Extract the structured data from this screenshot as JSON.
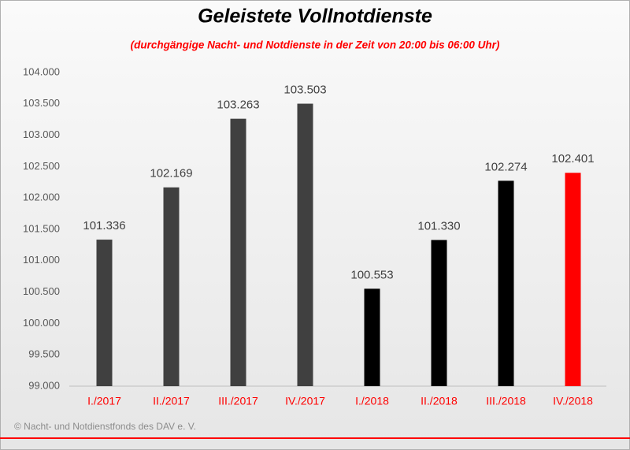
{
  "chart_data": {
    "type": "bar",
    "title": "Geleistete Vollnotdienste",
    "subtitle": "(durchgängige Nacht- und Notdienste in der Zeit von 20:00 bis 06:00 Uhr)",
    "categories": [
      "I./2017",
      "II./2017",
      "III./2017",
      "IV./2017",
      "I./2018",
      "II./2018",
      "III./2018",
      "IV./2018"
    ],
    "values": [
      101336,
      102169,
      103263,
      103503,
      100553,
      101330,
      102274,
      102401
    ],
    "value_labels": [
      "101.336",
      "102.169",
      "103.263",
      "103.503",
      "100.553",
      "101.330",
      "102.274",
      "102.401"
    ],
    "colors": [
      "#404040",
      "#404040",
      "#404040",
      "#404040",
      "#000000",
      "#000000",
      "#000000",
      "#ff0000"
    ],
    "ylim": [
      99000,
      104000
    ],
    "yticks": [
      {
        "value": 99000,
        "label": "99.000"
      },
      {
        "value": 99500,
        "label": "99.500"
      },
      {
        "value": 100000,
        "label": "100.000"
      },
      {
        "value": 100500,
        "label": "100.500"
      },
      {
        "value": 101000,
        "label": "101.000"
      },
      {
        "value": 101500,
        "label": "101.500"
      },
      {
        "value": 102000,
        "label": "102.000"
      },
      {
        "value": 102500,
        "label": "102.500"
      },
      {
        "value": 103000,
        "label": "103.000"
      },
      {
        "value": 103500,
        "label": "103.500"
      },
      {
        "value": 104000,
        "label": "104.000"
      }
    ],
    "grid": false,
    "source": "© Nacht- und Notdienstfonds des DAV e. V."
  }
}
